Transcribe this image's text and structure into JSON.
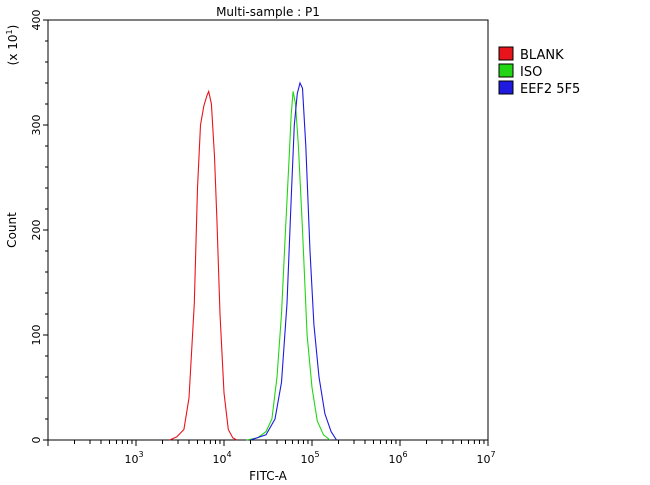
{
  "chart_data": {
    "type": "line",
    "title": "Multi-sample : P1",
    "xlabel": "FITC-A",
    "ylabel": "Count",
    "y_multiplier_label": "(x 10",
    "y_multiplier_exp": "1",
    "x_scale": "log",
    "xlim": [
      100,
      10000000
    ],
    "ylim": [
      0,
      400
    ],
    "x_ticks": [
      {
        "base": "10",
        "exp": "3",
        "value": 1000
      },
      {
        "base": "10",
        "exp": "4",
        "value": 10000
      },
      {
        "base": "10",
        "exp": "5",
        "value": 100000
      },
      {
        "base": "10",
        "exp": "6",
        "value": 1000000
      },
      {
        "base": "10",
        "exp": "7",
        "value": 10000000
      }
    ],
    "y_ticks": [
      {
        "label": "0",
        "value": 0
      },
      {
        "label": "100",
        "value": 100
      },
      {
        "label": "200",
        "value": 200
      },
      {
        "label": "300",
        "value": 300
      },
      {
        "label": "400",
        "value": 400
      }
    ],
    "legend_position": "top-right",
    "series": [
      {
        "name": "BLANK",
        "color": "#e8141b",
        "points": [
          [
            2400,
            0
          ],
          [
            2900,
            3
          ],
          [
            3500,
            10
          ],
          [
            4000,
            40
          ],
          [
            4600,
            130
          ],
          [
            5000,
            240
          ],
          [
            5400,
            300
          ],
          [
            5900,
            318
          ],
          [
            6400,
            328
          ],
          [
            6700,
            332
          ],
          [
            7200,
            320
          ],
          [
            7800,
            270
          ],
          [
            8300,
            210
          ],
          [
            9000,
            120
          ],
          [
            10000,
            45
          ],
          [
            11200,
            10
          ],
          [
            12600,
            2
          ],
          [
            14000,
            0
          ]
        ]
      },
      {
        "name": "ISO",
        "color": "#22d614",
        "points": [
          [
            18000,
            0
          ],
          [
            24000,
            2
          ],
          [
            30000,
            8
          ],
          [
            35000,
            20
          ],
          [
            40000,
            60
          ],
          [
            45000,
            120
          ],
          [
            50000,
            200
          ],
          [
            55000,
            270
          ],
          [
            58000,
            310
          ],
          [
            61000,
            332
          ],
          [
            65000,
            320
          ],
          [
            70000,
            280
          ],
          [
            78000,
            200
          ],
          [
            88000,
            100
          ],
          [
            100000,
            50
          ],
          [
            115000,
            18
          ],
          [
            135000,
            5
          ],
          [
            160000,
            0
          ]
        ]
      },
      {
        "name": "EEF2 5F5",
        "color": "#1f1ae0",
        "points": [
          [
            20000,
            0
          ],
          [
            30000,
            5
          ],
          [
            38000,
            20
          ],
          [
            45000,
            55
          ],
          [
            52000,
            130
          ],
          [
            58000,
            230
          ],
          [
            63000,
            300
          ],
          [
            68000,
            330
          ],
          [
            73000,
            340
          ],
          [
            78000,
            335
          ],
          [
            85000,
            280
          ],
          [
            95000,
            180
          ],
          [
            105000,
            110
          ],
          [
            120000,
            60
          ],
          [
            140000,
            25
          ],
          [
            165000,
            8
          ],
          [
            190000,
            0
          ]
        ]
      }
    ]
  }
}
